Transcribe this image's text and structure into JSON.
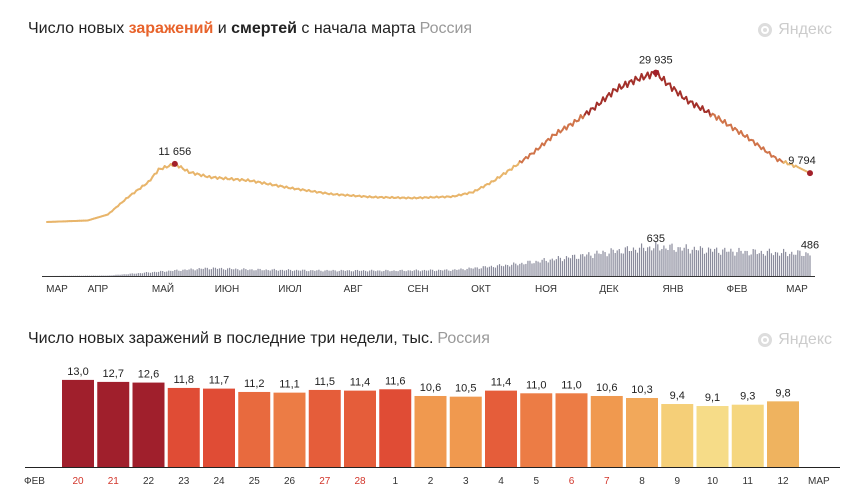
{
  "chart_data": [
    {
      "type": "line",
      "title_parts": {
        "p1": "Число новых ",
        "cases": "заражений",
        "p2": " и ",
        "deaths": "смертей",
        "p3": " с начала марта",
        "region": "Россия"
      },
      "logo": "Яндекс",
      "x_ticks": [
        "МАР",
        "АПР",
        "МАЙ",
        "ИЮН",
        "ИЮЛ",
        "АВГ",
        "СЕН",
        "ОКТ",
        "НОЯ",
        "ДЕК",
        "ЯНВ",
        "ФЕВ",
        "МАР"
      ],
      "cases_keypoints": [
        [
          0,
          0
        ],
        [
          20,
          300
        ],
        [
          30,
          1500
        ],
        [
          40,
          5000
        ],
        [
          50,
          8000
        ],
        [
          55,
          10500
        ],
        [
          63,
          11656
        ],
        [
          70,
          10000
        ],
        [
          80,
          9000
        ],
        [
          100,
          8300
        ],
        [
          120,
          6800
        ],
        [
          140,
          5600
        ],
        [
          160,
          5000
        ],
        [
          180,
          4800
        ],
        [
          200,
          5100
        ],
        [
          210,
          6000
        ],
        [
          220,
          8200
        ],
        [
          230,
          11000
        ],
        [
          240,
          14000
        ],
        [
          250,
          17500
        ],
        [
          260,
          20000
        ],
        [
          270,
          23000
        ],
        [
          280,
          26500
        ],
        [
          290,
          28500
        ],
        [
          300,
          29935
        ],
        [
          305,
          28000
        ],
        [
          315,
          24500
        ],
        [
          330,
          21000
        ],
        [
          345,
          17000
        ],
        [
          360,
          12500
        ],
        [
          370,
          11000
        ],
        [
          376,
          9794
        ]
      ],
      "deaths_keypoints": [
        [
          0,
          0
        ],
        [
          30,
          10
        ],
        [
          45,
          60
        ],
        [
          60,
          110
        ],
        [
          80,
          170
        ],
        [
          100,
          140
        ],
        [
          130,
          120
        ],
        [
          170,
          115
        ],
        [
          200,
          130
        ],
        [
          230,
          250
        ],
        [
          260,
          420
        ],
        [
          280,
          540
        ],
        [
          295,
          610
        ],
        [
          300,
          635
        ],
        [
          320,
          580
        ],
        [
          345,
          520
        ],
        [
          376,
          486
        ]
      ],
      "annotations": [
        {
          "label": "11 656",
          "day": 63,
          "value": 11656
        },
        {
          "label": "29 935",
          "day": 300,
          "value": 29935
        },
        {
          "label": "9 794",
          "day": 376,
          "value": 9794
        },
        {
          "label": "635",
          "day": 300,
          "value": 635,
          "series": "deaths"
        },
        {
          "label": "486",
          "day": 376,
          "value": 486,
          "series": "deaths"
        }
      ],
      "colors": {
        "cases_low": "#e8b56b",
        "cases_high": "#a3302a",
        "deaths": "#8a8b9c",
        "dot": "#a3202a"
      }
    },
    {
      "type": "bar",
      "title": "Число новых заражений в последние три недели, тыс.",
      "region": "Россия",
      "logo": "Яндекс",
      "start_label": "ФЕВ",
      "end_label": "МАР",
      "categories": [
        "20",
        "21",
        "22",
        "23",
        "24",
        "25",
        "26",
        "27",
        "28",
        "1",
        "2",
        "3",
        "4",
        "5",
        "6",
        "7",
        "8",
        "9",
        "10",
        "11",
        "12"
      ],
      "weekend": [
        true,
        true,
        false,
        false,
        false,
        false,
        false,
        true,
        true,
        false,
        false,
        false,
        false,
        false,
        true,
        true,
        false,
        false,
        false,
        false,
        false
      ],
      "values": [
        13.0,
        12.7,
        12.6,
        11.8,
        11.7,
        11.2,
        11.1,
        11.5,
        11.4,
        11.6,
        10.6,
        10.5,
        11.4,
        11.0,
        11.0,
        10.6,
        10.3,
        9.4,
        9.1,
        9.3,
        9.8
      ],
      "labels": [
        "13,0",
        "12,7",
        "12,6",
        "11,8",
        "11,7",
        "11,2",
        "11,1",
        "11,5",
        "11,4",
        "11,6",
        "10,6",
        "10,5",
        "11,4",
        "11,0",
        "11,0",
        "10,6",
        "10,3",
        "9,4",
        "9,1",
        "9,3",
        "9,8"
      ],
      "colors": [
        "#a01f2c",
        "#a01f2c",
        "#a01f2c",
        "#e04c35",
        "#e04c35",
        "#e86a3e",
        "#ec7c45",
        "#e55d3a",
        "#e55d3a",
        "#e04c35",
        "#f0994f",
        "#f0994f",
        "#e55d3a",
        "#ec7c45",
        "#ec7c45",
        "#f0994f",
        "#f2a85a",
        "#f5cf78",
        "#f6dc88",
        "#f5d67f",
        "#efb35f"
      ]
    }
  ]
}
